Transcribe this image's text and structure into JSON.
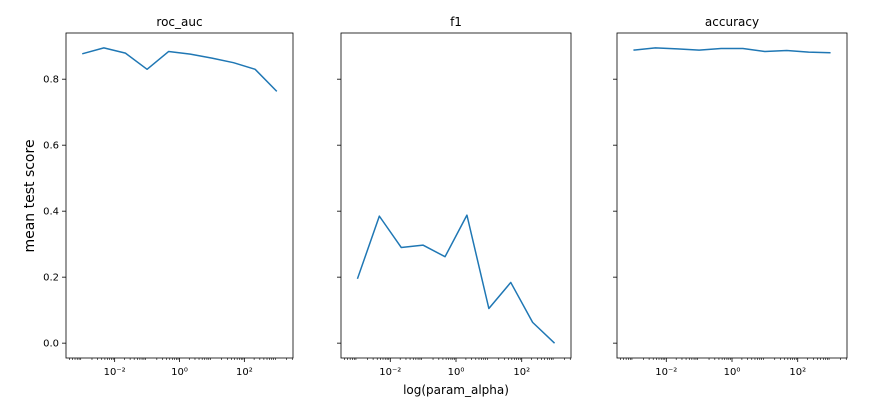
{
  "figure": {
    "ylabel": "mean test score",
    "xlabel": "log(param_alpha)"
  },
  "chart_data": [
    {
      "type": "line",
      "title": "roc_auc",
      "xscale": "log",
      "sharey": true,
      "ylim": [
        -0.045,
        0.94
      ],
      "xlim": [
        0.000316,
        3162
      ],
      "xticks": [
        0.01,
        1,
        100
      ],
      "xtick_labels": [
        "10⁻²",
        "10⁰",
        "10²"
      ],
      "yticks": [
        0.0,
        0.2,
        0.4,
        0.6,
        0.8
      ],
      "ytick_labels": [
        "0.0",
        "0.2",
        "0.4",
        "0.6",
        "0.8"
      ],
      "x": [
        0.001,
        0.00464,
        0.0215,
        0.1,
        0.464,
        2.15,
        10,
        46.4,
        215,
        1000
      ],
      "series": [
        {
          "values": [
            0.877,
            0.895,
            0.879,
            0.83,
            0.884,
            0.876,
            0.864,
            0.85,
            0.83,
            0.763
          ],
          "color": "#1f77b4"
        }
      ]
    },
    {
      "type": "line",
      "title": "f1",
      "xscale": "log",
      "sharey": true,
      "ylim": [
        -0.045,
        0.94
      ],
      "xlim": [
        0.000316,
        3162
      ],
      "xticks": [
        0.01,
        1,
        100
      ],
      "xtick_labels": [
        "10⁻²",
        "10⁰",
        "10²"
      ],
      "x": [
        0.001,
        0.00464,
        0.0215,
        0.1,
        0.464,
        2.15,
        10,
        46.4,
        215,
        1000
      ],
      "series": [
        {
          "values": [
            0.195,
            0.385,
            0.29,
            0.297,
            0.262,
            0.388,
            0.105,
            0.184,
            0.063,
            0.0
          ],
          "color": "#1f77b4"
        }
      ]
    },
    {
      "type": "line",
      "title": "accuracy",
      "xscale": "log",
      "sharey": true,
      "ylim": [
        -0.045,
        0.94
      ],
      "xlim": [
        0.000316,
        3162
      ],
      "xticks": [
        0.01,
        1,
        100
      ],
      "xtick_labels": [
        "10⁻²",
        "10⁰",
        "10²"
      ],
      "x": [
        0.001,
        0.00464,
        0.0215,
        0.1,
        0.464,
        2.15,
        10,
        46.4,
        215,
        1000
      ],
      "series": [
        {
          "values": [
            0.888,
            0.895,
            0.892,
            0.888,
            0.893,
            0.893,
            0.884,
            0.887,
            0.882,
            0.88
          ],
          "color": "#1f77b4"
        }
      ]
    }
  ]
}
